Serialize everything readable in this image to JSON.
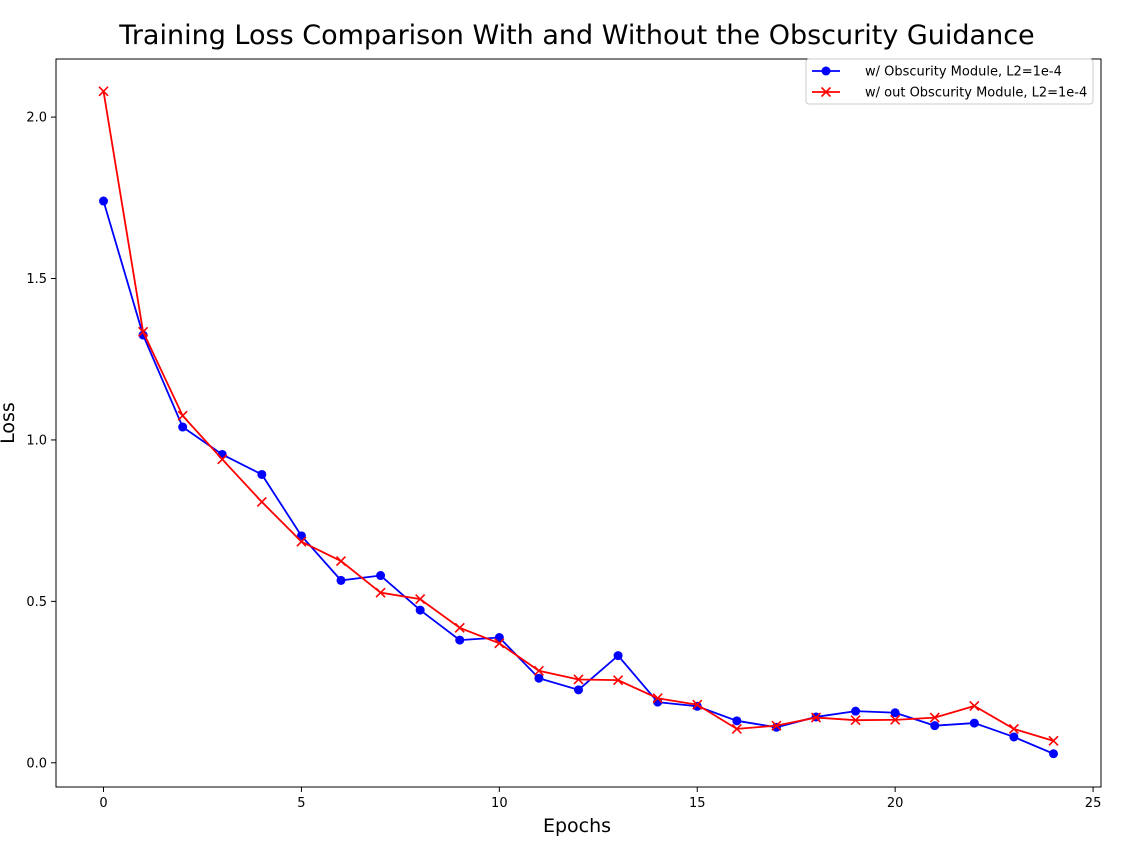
{
  "chart_data": {
    "type": "line",
    "title": "Training Loss Comparison With and Without the Obscurity Guidance",
    "xlabel": "Epochs",
    "ylabel": "Loss",
    "xlim": [
      -1.2,
      25.2
    ],
    "ylim": [
      -0.075,
      2.18
    ],
    "xticks": [
      0,
      5,
      10,
      15,
      20,
      25
    ],
    "yticks": [
      0.0,
      0.5,
      1.0,
      1.5,
      2.0
    ],
    "ytick_labels": [
      "0.0",
      "0.5",
      "1.0",
      "1.5",
      "2.0"
    ],
    "grid": false,
    "legend_position": "top-right",
    "x": [
      0,
      1,
      2,
      3,
      4,
      5,
      6,
      7,
      8,
      9,
      10,
      11,
      12,
      13,
      14,
      15,
      16,
      17,
      18,
      19,
      20,
      21,
      22,
      23,
      24
    ],
    "series": [
      {
        "name": "w/ Obscurity Module, L2=1e-4",
        "color": "#0000ff",
        "marker": "circle",
        "values": [
          1.74,
          1.325,
          1.04,
          0.955,
          0.893,
          0.703,
          0.565,
          0.58,
          0.473,
          0.38,
          0.388,
          0.262,
          0.226,
          0.332,
          0.188,
          0.175,
          0.13,
          0.11,
          0.142,
          0.16,
          0.155,
          0.115,
          0.123,
          0.08,
          0.028
        ]
      },
      {
        "name": "w/ out Obscurity Module, L2=1e-4",
        "color": "#ff0000",
        "marker": "x",
        "values": [
          2.08,
          1.335,
          1.075,
          0.94,
          0.808,
          0.685,
          0.625,
          0.527,
          0.507,
          0.418,
          0.37,
          0.285,
          0.258,
          0.256,
          0.2,
          0.18,
          0.105,
          0.115,
          0.14,
          0.132,
          0.133,
          0.14,
          0.176,
          0.105,
          0.068
        ]
      }
    ]
  }
}
